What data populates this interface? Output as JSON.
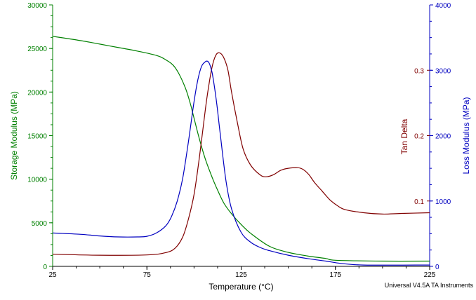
{
  "colors": {
    "storage": "#008000",
    "loss": "#0000C0",
    "tan": "#800000",
    "axis": "#000000"
  },
  "footer_text": "Universal V4.5A TA Instruments",
  "chart_data": {
    "type": "line",
    "xlabel": "Temperature (°C)",
    "xlim": [
      25,
      225
    ],
    "xticks": [
      "25",
      "75",
      "125",
      "175",
      "225"
    ],
    "axes": {
      "left": {
        "label": "Storage Modulus (MPa)",
        "lim": [
          0,
          30000
        ],
        "ticks": [
          "0",
          "5000",
          "10000",
          "15000",
          "20000",
          "25000",
          "30000"
        ]
      },
      "inner_right": {
        "label": "Tan Delta",
        "lim": [
          0,
          0.4
        ],
        "ticks": [
          "0.1",
          "0.2",
          "0.3"
        ]
      },
      "right": {
        "label": "Loss Modulus (MPa)",
        "lim": [
          0,
          4000
        ],
        "ticks": [
          "0",
          "1000",
          "2000",
          "3000",
          "4000"
        ]
      }
    },
    "series": [
      {
        "axis": "left",
        "x": [
          25,
          40,
          50,
          60,
          70,
          80,
          85,
          90,
          95,
          98,
          100,
          103,
          106,
          110,
          113,
          116,
          120,
          125,
          130,
          140,
          150,
          160,
          170,
          175,
          200,
          225
        ],
        "y": [
          26400,
          25900,
          25500,
          25100,
          24700,
          24200,
          23700,
          22800,
          20700,
          18700,
          17000,
          14500,
          12300,
          10000,
          8500,
          7200,
          6000,
          4800,
          3800,
          2300,
          1600,
          1200,
          900,
          700,
          600,
          600
        ]
      },
      {
        "axis": "inner_right",
        "x": [
          25,
          50,
          75,
          85,
          90,
          94,
          97,
          100,
          103,
          106,
          108,
          110,
          112,
          114,
          116,
          118,
          120,
          123,
          126,
          130,
          135,
          138,
          142,
          146,
          150,
          155,
          158,
          161,
          164,
          168,
          172,
          176,
          180,
          190,
          200,
          210,
          225
        ],
        "y": [
          0.0185,
          0.017,
          0.0175,
          0.021,
          0.028,
          0.045,
          0.072,
          0.11,
          0.17,
          0.24,
          0.28,
          0.31,
          0.325,
          0.326,
          0.318,
          0.3,
          0.265,
          0.22,
          0.18,
          0.155,
          0.14,
          0.137,
          0.14,
          0.147,
          0.15,
          0.151,
          0.148,
          0.14,
          0.128,
          0.115,
          0.102,
          0.093,
          0.087,
          0.082,
          0.08,
          0.081,
          0.082
        ]
      },
      {
        "axis": "right",
        "x": [
          25,
          40,
          50,
          60,
          70,
          75,
          80,
          85,
          88,
          91,
          94,
          97,
          100,
          102,
          104,
          106,
          107,
          108,
          109,
          110,
          112,
          114,
          117,
          120,
          125,
          130,
          135,
          140,
          150,
          160,
          170,
          178,
          190,
          225
        ],
        "y": [
          510,
          490,
          465,
          450,
          450,
          460,
          510,
          620,
          760,
          990,
          1350,
          1900,
          2520,
          2850,
          3060,
          3130,
          3140,
          3110,
          3030,
          2900,
          2500,
          2000,
          1300,
          870,
          520,
          370,
          290,
          240,
          170,
          120,
          80,
          45,
          20,
          20
        ]
      }
    ]
  }
}
